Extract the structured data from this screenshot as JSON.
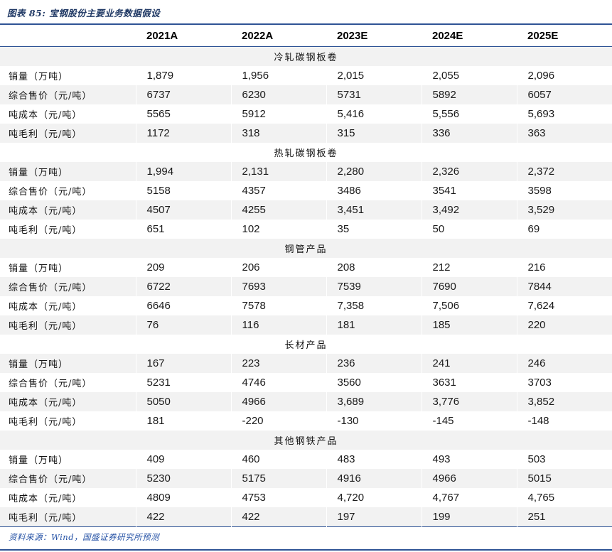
{
  "figure": {
    "title": "图表 85: 宝钢股份主要业务数据假设",
    "source": "资料来源：Wind，国盛证券研究所预测"
  },
  "colors": {
    "accent_navy": "#1f3864",
    "rule_blue": "#2e5395",
    "source_blue": "#2451a5",
    "stripe_gray": "#f2f2f2"
  },
  "table": {
    "columns": [
      "",
      "2021A",
      "2022A",
      "2023E",
      "2024E",
      "2025E"
    ],
    "sections": [
      {
        "name": "冷轧碳钢板卷",
        "rows": [
          {
            "label": "销量（万吨）",
            "values": [
              "1,879",
              "1,956",
              "2,015",
              "2,055",
              "2,096"
            ]
          },
          {
            "label": "综合售价（元/吨）",
            "values": [
              "6737",
              "6230",
              "5731",
              "5892",
              "6057"
            ]
          },
          {
            "label": "吨成本（元/吨）",
            "values": [
              "5565",
              "5912",
              "5,416",
              "5,556",
              "5,693"
            ]
          },
          {
            "label": "吨毛利（元/吨）",
            "values": [
              "1172",
              "318",
              "315",
              "336",
              "363"
            ]
          }
        ]
      },
      {
        "name": "热轧碳钢板卷",
        "rows": [
          {
            "label": "销量（万吨）",
            "values": [
              "1,994",
              "2,131",
              "2,280",
              "2,326",
              "2,372"
            ]
          },
          {
            "label": "综合售价（元/吨）",
            "values": [
              "5158",
              "4357",
              "3486",
              "3541",
              "3598"
            ]
          },
          {
            "label": "吨成本（元/吨）",
            "values": [
              "4507",
              "4255",
              "3,451",
              "3,492",
              "3,529"
            ]
          },
          {
            "label": "吨毛利（元/吨）",
            "values": [
              "651",
              "102",
              "35",
              "50",
              "69"
            ]
          }
        ]
      },
      {
        "name": "钢管产品",
        "rows": [
          {
            "label": "销量（万吨）",
            "values": [
              "209",
              "206",
              "208",
              "212",
              "216"
            ]
          },
          {
            "label": "综合售价（元/吨）",
            "values": [
              "6722",
              "7693",
              "7539",
              "7690",
              "7844"
            ]
          },
          {
            "label": "吨成本（元/吨）",
            "values": [
              "6646",
              "7578",
              "7,358",
              "7,506",
              "7,624"
            ]
          },
          {
            "label": "吨毛利（元/吨）",
            "values": [
              "76",
              "116",
              "181",
              "185",
              "220"
            ]
          }
        ]
      },
      {
        "name": "长材产品",
        "rows": [
          {
            "label": "销量（万吨）",
            "values": [
              "167",
              "223",
              "236",
              "241",
              "246"
            ]
          },
          {
            "label": "综合售价（元/吨）",
            "values": [
              "5231",
              "4746",
              "3560",
              "3631",
              "3703"
            ]
          },
          {
            "label": "吨成本（元/吨）",
            "values": [
              "5050",
              "4966",
              "3,689",
              "3,776",
              "3,852"
            ]
          },
          {
            "label": "吨毛利（元/吨）",
            "values": [
              "181",
              "-220",
              "-130",
              "-145",
              "-148"
            ]
          }
        ]
      },
      {
        "name": "其他钢铁产品",
        "rows": [
          {
            "label": "销量（万吨）",
            "values": [
              "409",
              "460",
              "483",
              "493",
              "503"
            ]
          },
          {
            "label": "综合售价（元/吨）",
            "values": [
              "5230",
              "5175",
              "4916",
              "4966",
              "5015"
            ]
          },
          {
            "label": "吨成本（元/吨）",
            "values": [
              "4809",
              "4753",
              "4,720",
              "4,767",
              "4,765"
            ]
          },
          {
            "label": "吨毛利（元/吨）",
            "values": [
              "422",
              "422",
              "197",
              "199",
              "251"
            ]
          }
        ]
      }
    ]
  }
}
